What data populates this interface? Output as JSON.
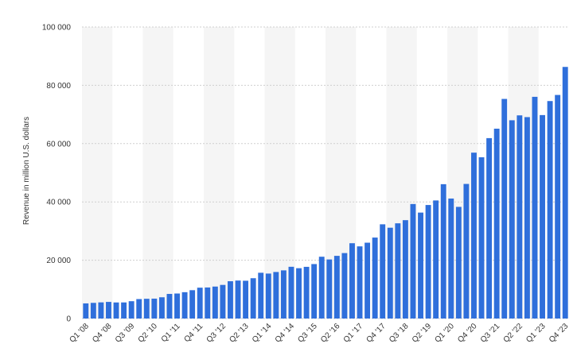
{
  "chart_data": {
    "type": "bar",
    "ylabel": "Revenue in million U.S. dollars",
    "xlabel": "",
    "ylim": [
      0,
      100000
    ],
    "yticks": [
      0,
      20000,
      40000,
      60000,
      80000,
      100000
    ],
    "ytick_labels": [
      "0",
      "20 000",
      "40 000",
      "60 000",
      "80 000",
      "100 000"
    ],
    "grid": true,
    "legend": "none",
    "bar_color": "#2f6fdb",
    "band_color": "#f5f5f5",
    "categories": [
      "Q1 '08",
      "Q2 '08",
      "Q3 '08",
      "Q4 '08",
      "Q1 '09",
      "Q2 '09",
      "Q3 '09",
      "Q4 '09",
      "Q1 '10",
      "Q2 '10",
      "Q3 '10",
      "Q4 '10",
      "Q1 '11",
      "Q2 '11",
      "Q3 '11",
      "Q4 '11",
      "Q1 '12",
      "Q2 '12",
      "Q3 '12",
      "Q4 '12",
      "Q1 '13",
      "Q2 '13",
      "Q3 '13",
      "Q4 '13",
      "Q1 '14",
      "Q2 '14",
      "Q3 '14",
      "Q4 '14",
      "Q1 '15",
      "Q2 '15",
      "Q3 '15",
      "Q4 '15",
      "Q1 '16",
      "Q2 '16",
      "Q3 '16",
      "Q4 '16",
      "Q1 '17",
      "Q2 '17",
      "Q3 '17",
      "Q4 '17",
      "Q1 '18",
      "Q2 '18",
      "Q3 '18",
      "Q4 '18",
      "Q1 '19",
      "Q2 '19",
      "Q3 '19",
      "Q4 '19",
      "Q1 '20",
      "Q2 '20",
      "Q3 '20",
      "Q4 '20",
      "Q1 '21",
      "Q2 '21",
      "Q3 '21",
      "Q4 '21",
      "Q1 '22",
      "Q2 '22",
      "Q3 '22",
      "Q4 '22",
      "Q1 '23",
      "Q2 '23",
      "Q3 '23",
      "Q4 '23"
    ],
    "shown_tick_labels": [
      "Q1 '08",
      "Q4 '08",
      "Q3 '09",
      "Q2 '10",
      "Q1 '11",
      "Q4 '11",
      "Q3 '12",
      "Q2 '13",
      "Q1 '14",
      "Q4 '14",
      "Q3 '15",
      "Q2 '16",
      "Q1 '17",
      "Q4 '17",
      "Q3 '18",
      "Q2 '19",
      "Q1 '20",
      "Q4 '20",
      "Q3 '21",
      "Q2 '22",
      "Q1 '23",
      "Q4 '23"
    ],
    "values": [
      5190,
      5370,
      5540,
      5700,
      5510,
      5520,
      5940,
      6670,
      6770,
      6820,
      7290,
      8440,
      8580,
      9030,
      9720,
      10580,
      10650,
      10960,
      11530,
      12790,
      13030,
      12960,
      13830,
      15700,
      15420,
      15960,
      16520,
      17750,
      17260,
      17730,
      18680,
      21200,
      20260,
      21500,
      22450,
      25830,
      24750,
      26010,
      27770,
      32320,
      31150,
      32660,
      33740,
      39280,
      36340,
      38940,
      40500,
      46080,
      41160,
      38300,
      46170,
      56900,
      55310,
      61880,
      65120,
      75330,
      68010,
      69690,
      69090,
      76050,
      69790,
      74600,
      76690,
      86310
    ]
  }
}
